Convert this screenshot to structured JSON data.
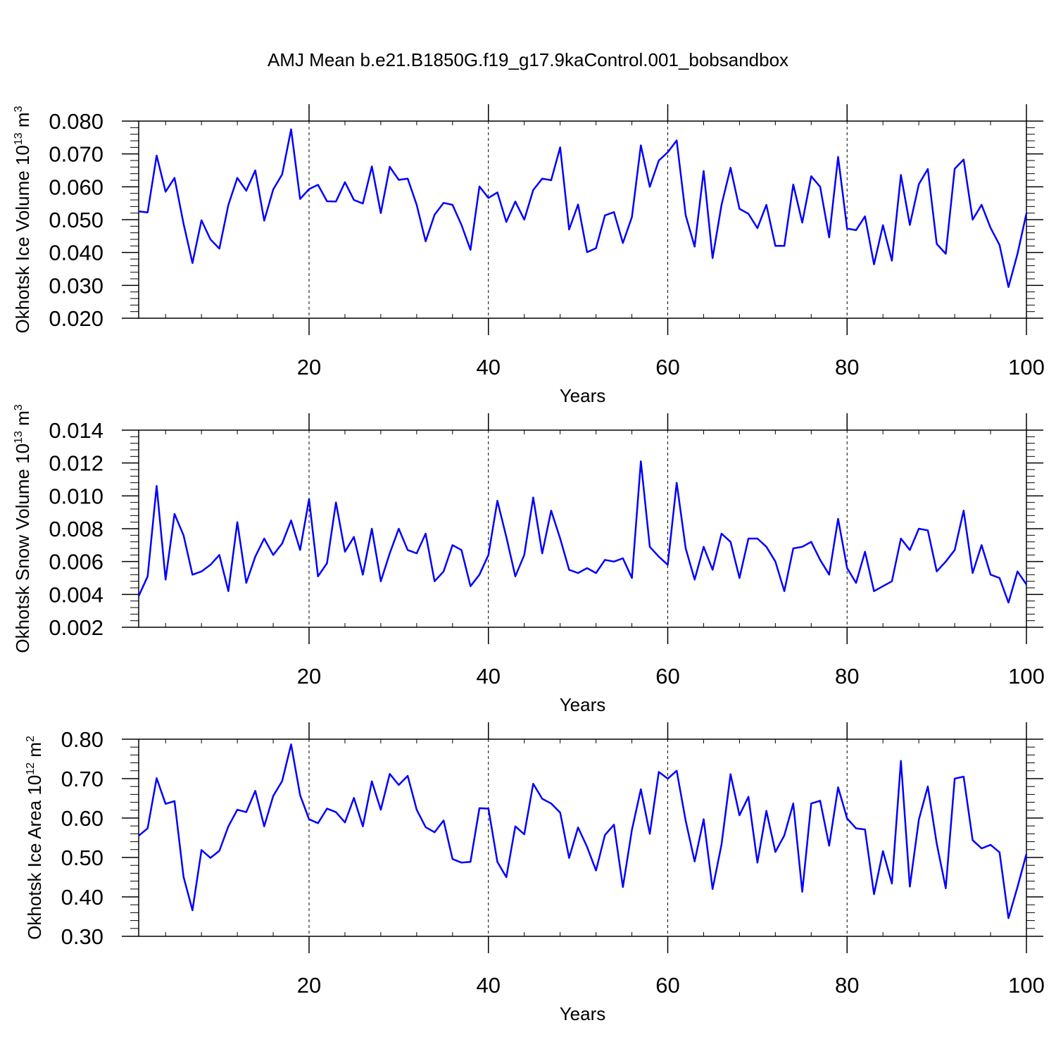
{
  "title": "AMJ Mean b.e21.B1850G.f19_g17.9kaControl.001_bobsandbox",
  "line_color": "#0000ff",
  "chart_data": [
    {
      "type": "line",
      "ylabel": {
        "main": "Okhotsk Ice Volume 10",
        "exp": "13",
        "unit": " m",
        "unit_exp": "3"
      },
      "xlabel": "Years",
      "xlim": [
        1,
        100
      ],
      "ylim": [
        0.02,
        0.08
      ],
      "xticks": [
        20,
        40,
        60,
        80,
        100
      ],
      "yticks": [
        "0.020",
        "0.030",
        "0.040",
        "0.050",
        "0.060",
        "0.070",
        "0.080"
      ],
      "grid": "vertical dashed at major x ticks",
      "x_start": 1,
      "values": [
        0.0525,
        0.0522,
        0.0695,
        0.0585,
        0.0627,
        0.0488,
        0.0368,
        0.0498,
        0.044,
        0.0412,
        0.0545,
        0.0627,
        0.0588,
        0.065,
        0.0497,
        0.0592,
        0.0638,
        0.0775,
        0.0563,
        0.0593,
        0.0606,
        0.0556,
        0.0555,
        0.0614,
        0.056,
        0.0549,
        0.0662,
        0.052,
        0.0661,
        0.0621,
        0.0625,
        0.0545,
        0.0434,
        0.0515,
        0.0551,
        0.0545,
        0.0484,
        0.0408,
        0.0601,
        0.0566,
        0.0583,
        0.0493,
        0.0555,
        0.05,
        0.059,
        0.0625,
        0.062,
        0.072,
        0.047,
        0.0546,
        0.0401,
        0.0413,
        0.0513,
        0.0523,
        0.0429,
        0.0508,
        0.0726,
        0.06,
        0.068,
        0.0705,
        0.0741,
        0.0513,
        0.0418,
        0.0648,
        0.0383,
        0.0545,
        0.0658,
        0.0533,
        0.0518,
        0.0474,
        0.0545,
        0.042,
        0.042,
        0.0607,
        0.0491,
        0.0632,
        0.06,
        0.0446,
        0.0691,
        0.0473,
        0.0468,
        0.051,
        0.0364,
        0.0483,
        0.0375,
        0.0636,
        0.0484,
        0.0608,
        0.0654,
        0.0426,
        0.0396,
        0.0655,
        0.0683,
        0.05,
        0.0545,
        0.0475,
        0.0423,
        0.0295,
        0.0396,
        0.0519
      ]
    },
    {
      "type": "line",
      "ylabel": {
        "main": "Okhotsk Snow Volume 10",
        "exp": "13",
        "unit": " m",
        "unit_exp": "3"
      },
      "xlabel": "Years",
      "xlim": [
        1,
        100
      ],
      "ylim": [
        0.002,
        0.014
      ],
      "xticks": [
        20,
        40,
        60,
        80,
        100
      ],
      "yticks": [
        "0.002",
        "0.004",
        "0.006",
        "0.008",
        "0.010",
        "0.012",
        "0.014"
      ],
      "grid": "vertical dashed at major x ticks",
      "x_start": 1,
      "values": [
        0.0039,
        0.0051,
        0.0106,
        0.0049,
        0.0089,
        0.0076,
        0.0052,
        0.0054,
        0.0058,
        0.0064,
        0.0042,
        0.0084,
        0.0047,
        0.0063,
        0.0074,
        0.0064,
        0.0071,
        0.0085,
        0.0067,
        0.0098,
        0.0051,
        0.0059,
        0.0096,
        0.0066,
        0.0075,
        0.0052,
        0.008,
        0.0048,
        0.0065,
        0.008,
        0.0067,
        0.0065,
        0.0077,
        0.0048,
        0.0054,
        0.007,
        0.0067,
        0.0045,
        0.0052,
        0.0064,
        0.0097,
        0.0075,
        0.0051,
        0.0064,
        0.0099,
        0.0065,
        0.0091,
        0.0074,
        0.0055,
        0.0053,
        0.0056,
        0.0053,
        0.0061,
        0.006,
        0.0062,
        0.005,
        0.0121,
        0.0069,
        0.0063,
        0.0058,
        0.0108,
        0.0068,
        0.0049,
        0.0069,
        0.0055,
        0.0077,
        0.0072,
        0.005,
        0.0074,
        0.0074,
        0.0069,
        0.006,
        0.0042,
        0.0068,
        0.0069,
        0.0072,
        0.0061,
        0.0052,
        0.0086,
        0.0056,
        0.0047,
        0.0066,
        0.0042,
        0.0045,
        0.0048,
        0.0074,
        0.0067,
        0.008,
        0.0079,
        0.0054,
        0.006,
        0.0067,
        0.0091,
        0.0053,
        0.007,
        0.0052,
        0.005,
        0.0035,
        0.0054,
        0.0046
      ]
    },
    {
      "type": "line",
      "ylabel": {
        "main": "Okhotsk Ice Area 10",
        "exp": "12",
        "unit": " m",
        "unit_exp": "2"
      },
      "xlabel": "Years",
      "xlim": [
        1,
        100
      ],
      "ylim": [
        0.3,
        0.8
      ],
      "xticks": [
        20,
        40,
        60,
        80,
        100
      ],
      "yticks": [
        "0.30",
        "0.40",
        "0.50",
        "0.60",
        "0.70",
        "0.80"
      ],
      "grid": "vertical dashed at major x ticks",
      "x_start": 1,
      "values": [
        0.555,
        0.574,
        0.701,
        0.636,
        0.643,
        0.451,
        0.366,
        0.519,
        0.499,
        0.517,
        0.579,
        0.621,
        0.615,
        0.669,
        0.579,
        0.656,
        0.694,
        0.787,
        0.658,
        0.597,
        0.587,
        0.624,
        0.615,
        0.589,
        0.651,
        0.579,
        0.693,
        0.621,
        0.712,
        0.684,
        0.707,
        0.621,
        0.577,
        0.564,
        0.594,
        0.496,
        0.487,
        0.489,
        0.625,
        0.624,
        0.489,
        0.45,
        0.579,
        0.559,
        0.687,
        0.649,
        0.637,
        0.614,
        0.499,
        0.576,
        0.527,
        0.467,
        0.557,
        0.583,
        0.425,
        0.57,
        0.673,
        0.56,
        0.717,
        0.7,
        0.72,
        0.593,
        0.49,
        0.597,
        0.42,
        0.533,
        0.711,
        0.607,
        0.654,
        0.487,
        0.618,
        0.514,
        0.556,
        0.637,
        0.413,
        0.637,
        0.644,
        0.53,
        0.678,
        0.599,
        0.574,
        0.571,
        0.407,
        0.516,
        0.434,
        0.745,
        0.426,
        0.596,
        0.68,
        0.535,
        0.422,
        0.7,
        0.705,
        0.544,
        0.523,
        0.532,
        0.513,
        0.346,
        0.425,
        0.509
      ]
    }
  ]
}
